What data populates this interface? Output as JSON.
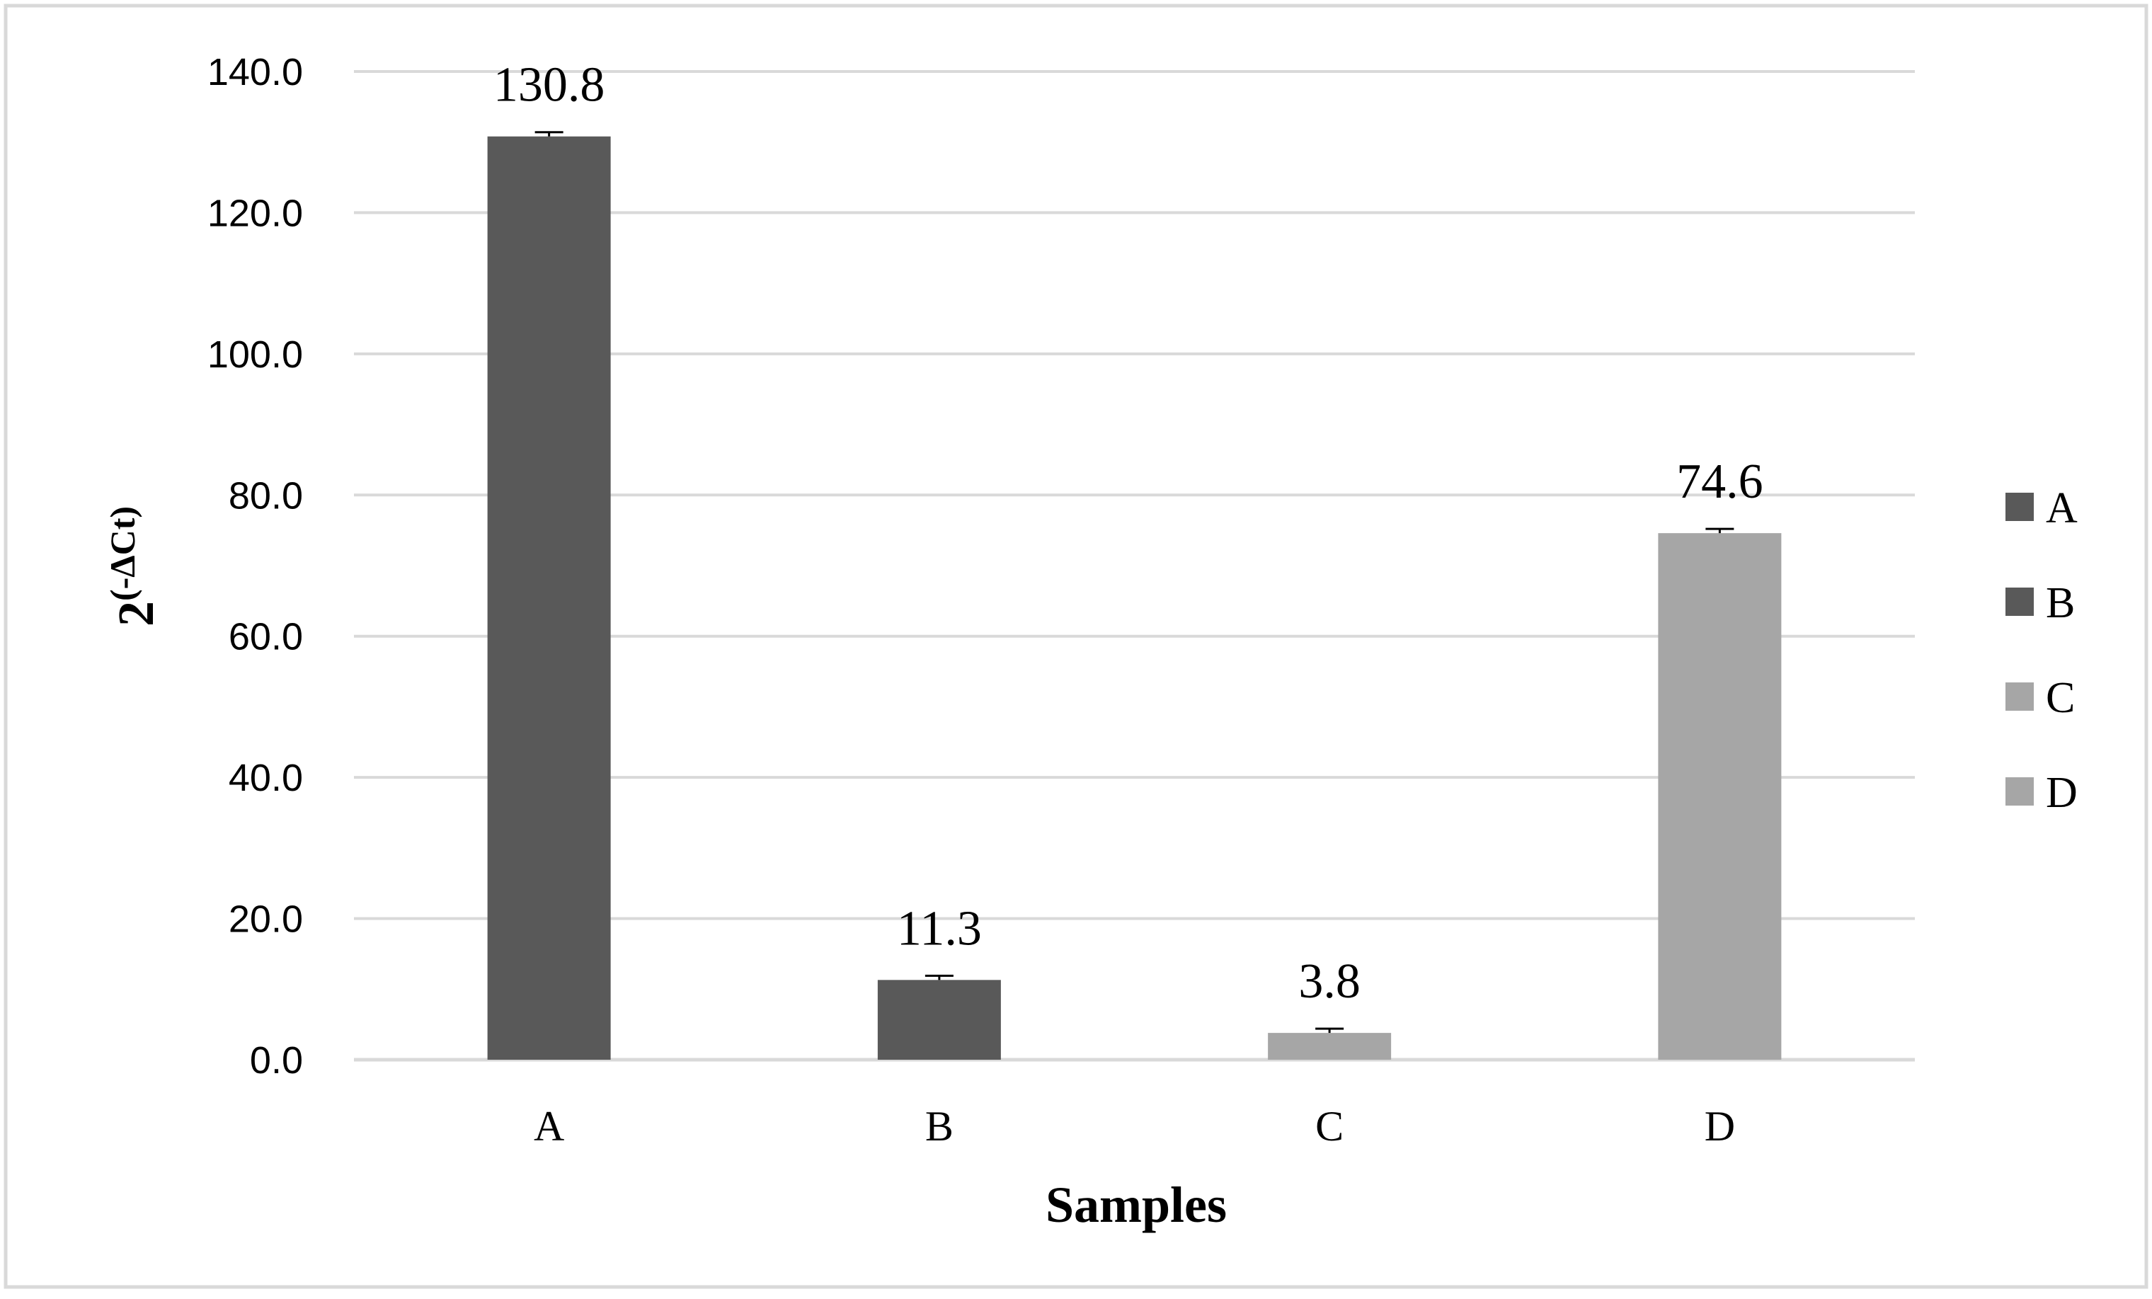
{
  "chart_data": {
    "type": "bar",
    "categories": [
      "A",
      "B",
      "C",
      "D"
    ],
    "values": [
      130.8,
      11.3,
      3.8,
      74.6
    ],
    "value_labels": [
      "130.8",
      "11.3",
      "3.8",
      "74.6"
    ],
    "error_bars": true,
    "bar_colors": [
      "#595959",
      "#595959",
      "#a6a6a6",
      "#a6a6a6"
    ],
    "xlabel": "Samples",
    "ylabel": "2(-ΔCt)",
    "ylabel_base": "2",
    "ylabel_exponent": "(-ΔCt)",
    "ylim": [
      0,
      140
    ],
    "yticks": [
      "0.0",
      "20.0",
      "40.0",
      "60.0",
      "80.0",
      "100.0",
      "120.0",
      "140.0"
    ],
    "ytick_values": [
      0,
      20,
      40,
      60,
      80,
      100,
      120,
      140
    ],
    "grid": true,
    "legend_position": "right",
    "legend": [
      {
        "label": "A",
        "color": "#595959"
      },
      {
        "label": "B",
        "color": "#595959"
      },
      {
        "label": "C",
        "color": "#a6a6a6"
      },
      {
        "label": "D",
        "color": "#a6a6a6"
      }
    ],
    "colors": {
      "grid": "#d9d9d9",
      "frame": "#d9d9d9"
    }
  }
}
